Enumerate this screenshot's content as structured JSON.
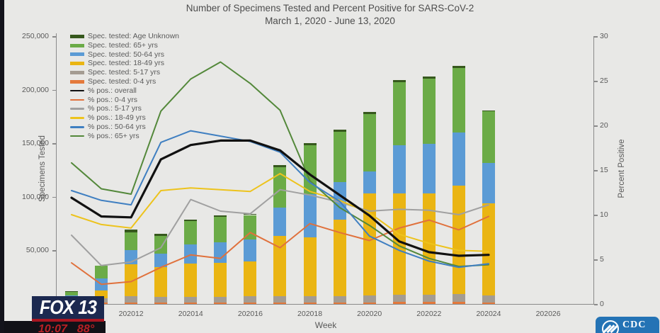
{
  "broadcast": {
    "station": "FOX 13",
    "time": "10:07",
    "temperature": "88°",
    "cdc_label": "CDC",
    "colors": {
      "fox_navy": "#1c2950",
      "fox_red": "#a81621",
      "ticker_red": "#b92025",
      "cdc_blue": "#2473b5",
      "edge_dark": "#13131b"
    }
  },
  "chart": {
    "title_line1": "Number of Specimens Tested and Percent Positive for SARS-CoV-2",
    "title_line2": "March 1, 2020 - June 13, 2020",
    "left_axis_label": "Specimens Tested",
    "right_axis_label": "Percent Positive",
    "x_axis_label": "Week",
    "left_ticks": [
      {
        "label": "250,000",
        "value": 250000
      },
      {
        "label": "200,000",
        "value": 200000
      },
      {
        "label": "150,000",
        "value": 150000
      },
      {
        "label": "100,000",
        "value": 100000
      },
      {
        "label": "50,000",
        "value": 50000
      }
    ],
    "right_ticks": [
      {
        "label": "30",
        "value": 30
      },
      {
        "label": "25",
        "value": 25
      },
      {
        "label": "20",
        "value": 20
      },
      {
        "label": "15",
        "value": 15
      },
      {
        "label": "10",
        "value": 10
      },
      {
        "label": "5",
        "value": 5
      },
      {
        "label": "0",
        "value": 0
      }
    ],
    "x_ticks": [
      "202012",
      "202014",
      "202016",
      "202018",
      "202020",
      "202022",
      "202024",
      "202026"
    ],
    "legend": [
      {
        "key": "unknown",
        "label": "Spec. tested: Age Unknown",
        "color": "#36581d",
        "kind": "bar"
      },
      {
        "key": "65plus",
        "label": "Spec. tested: 65+ yrs",
        "color": "#6bab47",
        "kind": "bar"
      },
      {
        "key": "50-64",
        "label": "Spec. tested: 50-64 yrs",
        "color": "#5b9bd5",
        "kind": "bar"
      },
      {
        "key": "18-49",
        "label": "Spec. tested: 18-49 yrs",
        "color": "#eab513",
        "kind": "bar"
      },
      {
        "key": "5-17",
        "label": "Spec. tested: 5-17 yrs",
        "color": "#a49c92",
        "kind": "bar"
      },
      {
        "key": "0-4",
        "label": "Spec. tested: 0-4 yrs",
        "color": "#e4793b",
        "kind": "bar"
      },
      {
        "key": "pos-overall",
        "label": "% pos.: overall",
        "color": "#111111",
        "kind": "line"
      },
      {
        "key": "pos-0-4",
        "label": "% pos.: 0-4 yrs",
        "color": "#e0713c",
        "kind": "line"
      },
      {
        "key": "pos-5-17",
        "label": "% pos.: 5-17 yrs",
        "color": "#a0a0a0",
        "kind": "line"
      },
      {
        "key": "pos-18-49",
        "label": "% pos.: 18-49 yrs",
        "color": "#edc31c",
        "kind": "line"
      },
      {
        "key": "pos-50-64",
        "label": "% pos.: 50-64 yrs",
        "color": "#3f7fc1",
        "kind": "line"
      },
      {
        "key": "pos-65plus",
        "label": "% pos.: 65+ yrs",
        "color": "#53883a",
        "kind": "line"
      }
    ]
  },
  "chart_data": [
    {
      "type": "bar",
      "stacked": true,
      "title": "Number of Specimens Tested and Percent Positive for SARS-CoV-2",
      "subtitle": "March 1, 2020 - June 13, 2020",
      "xlabel": "Week",
      "ylabel": "Specimens Tested",
      "ylim": [
        0,
        250000
      ],
      "categories": [
        "202010",
        "202011",
        "202012",
        "202013",
        "202014",
        "202015",
        "202016",
        "202017",
        "202018",
        "202019",
        "202020",
        "202021",
        "202022",
        "202023",
        "202024"
      ],
      "series": [
        {
          "name": "Spec. tested: 0-4 yrs",
          "color": "#e4793b",
          "values": [
            400,
            1300,
            1300,
            1300,
            1300,
            1300,
            1500,
            1300,
            1300,
            1300,
            1300,
            2000,
            2000,
            2000,
            1300
          ]
        },
        {
          "name": "Spec. tested: 5-17 yrs",
          "color": "#a49c92",
          "values": [
            700,
            4000,
            6000,
            5300,
            5300,
            5300,
            5500,
            6000,
            6000,
            6000,
            6600,
            6600,
            6600,
            7300,
            6600
          ]
        },
        {
          "name": "Spec. tested: 18-49 yrs",
          "color": "#eab513",
          "values": [
            5000,
            7500,
            30000,
            27800,
            31100,
            31800,
            33000,
            56300,
            55000,
            71500,
            95300,
            94700,
            94700,
            101300,
            86100
          ]
        },
        {
          "name": "Spec. tested: 50-64 yrs",
          "color": "#5b9bd5",
          "values": [
            2000,
            11300,
            13200,
            12600,
            17900,
            19200,
            20500,
            26500,
            40000,
            35000,
            20500,
            45000,
            46300,
            49600,
            37700
          ]
        },
        {
          "name": "Spec. tested: 65+ yrs",
          "color": "#6bab47",
          "values": [
            3000,
            11900,
            16500,
            16500,
            21800,
            23800,
            22500,
            37700,
            46000,
            47000,
            53600,
            58900,
            60900,
            60200,
            48300
          ]
        },
        {
          "name": "Spec. tested: Age Unknown",
          "color": "#36581d",
          "values": [
            200,
            0,
            2600,
            2000,
            1300,
            1000,
            1000,
            2000,
            2000,
            2000,
            2000,
            2000,
            2000,
            2000,
            700
          ]
        }
      ]
    },
    {
      "type": "line",
      "xlabel": "Week",
      "ylabel": "Percent Positive",
      "ylim": [
        0,
        30
      ],
      "legend_position": "upper-left",
      "categories": [
        "202010",
        "202011",
        "202012",
        "202013",
        "202014",
        "202015",
        "202016",
        "202017",
        "202018",
        "202019",
        "202020",
        "202021",
        "202022",
        "202023",
        "202024"
      ],
      "series": [
        {
          "name": "% pos.: overall",
          "color": "#111111",
          "width": 3.2,
          "values": [
            11.9,
            9.8,
            9.7,
            16.2,
            17.8,
            18.3,
            18.3,
            17.2,
            14.5,
            12.2,
            9.9,
            7.0,
            5.8,
            5.4,
            5.5
          ]
        },
        {
          "name": "% pos.: 0-4 yrs",
          "color": "#e0713c",
          "width": 2,
          "values": [
            4.6,
            2.2,
            2.5,
            4.1,
            5.5,
            5.1,
            8.0,
            6.3,
            9.0,
            8.0,
            7.1,
            8.5,
            9.4,
            8.3,
            9.8
          ]
        },
        {
          "name": "% pos.: 5-17 yrs",
          "color": "#a0a0a0",
          "width": 2,
          "values": [
            7.7,
            4.3,
            4.7,
            6.3,
            11.7,
            10.4,
            10.1,
            12.8,
            12.2,
            11.4,
            10.4,
            10.6,
            10.5,
            10.0,
            11.1
          ]
        },
        {
          "name": "% pos.: 18-49 yrs",
          "color": "#edc31c",
          "width": 2,
          "values": [
            10.0,
            8.9,
            8.5,
            12.7,
            13.0,
            12.8,
            12.6,
            14.6,
            12.6,
            11.6,
            10.2,
            7.8,
            6.8,
            6.0,
            5.9
          ]
        },
        {
          "name": "% pos.: 50-64 yrs",
          "color": "#3f7fc1",
          "width": 2,
          "values": [
            12.7,
            11.6,
            11.1,
            18.1,
            19.4,
            18.8,
            18.2,
            17.0,
            13.6,
            11.5,
            7.6,
            6.0,
            4.8,
            4.1,
            4.5
          ]
        },
        {
          "name": "% pos.: 65+ yrs",
          "color": "#53883a",
          "width": 2,
          "values": [
            15.8,
            12.9,
            12.3,
            21.6,
            25.2,
            27.1,
            24.7,
            21.7,
            13.8,
            10.8,
            8.8,
            6.5,
            5.1,
            4.2,
            4.4
          ]
        }
      ]
    }
  ]
}
